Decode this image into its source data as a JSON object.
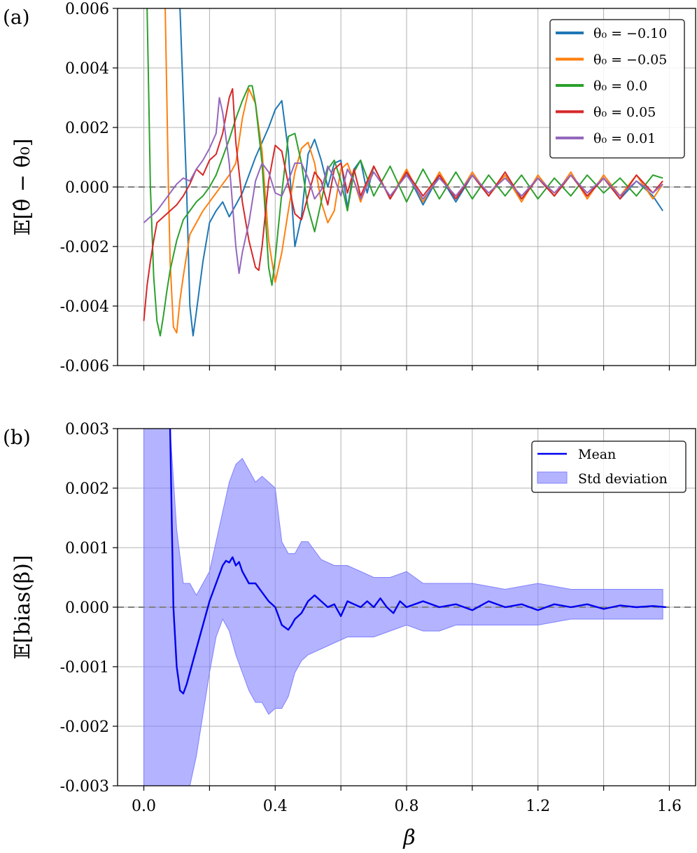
{
  "chart_data": [
    {
      "type": "line",
      "panel_label": "(a)",
      "ylabel": "𝔼[θ̂ − θ₀]",
      "xlim": [
        -0.08,
        1.68
      ],
      "ylim": [
        -0.006,
        0.006
      ],
      "yticks": [
        "-0.006",
        "-0.004",
        "-0.002",
        "0.000",
        "0.002",
        "0.004",
        "0.006"
      ],
      "ytick_values": [
        -0.006,
        -0.004,
        -0.002,
        0.0,
        0.002,
        0.004,
        0.006
      ],
      "xticks_grid": [
        0.0,
        0.2,
        0.4,
        0.6,
        0.8,
        1.0,
        1.2,
        1.4,
        1.6
      ],
      "grid": true,
      "reference_line": 0.0,
      "legend_position": "upper right",
      "series": [
        {
          "name": "θ₀ = −0.10",
          "color": "#1f77b4",
          "x": [
            0.11,
            0.12,
            0.13,
            0.14,
            0.15,
            0.16,
            0.18,
            0.2,
            0.22,
            0.24,
            0.26,
            0.28,
            0.3,
            0.32,
            0.34,
            0.36,
            0.38,
            0.4,
            0.42,
            0.44,
            0.46,
            0.48,
            0.5,
            0.52,
            0.54,
            0.56,
            0.58,
            0.6,
            0.62,
            0.64,
            0.66,
            0.68,
            0.7,
            0.75,
            0.8,
            0.85,
            0.9,
            0.95,
            1.0,
            1.05,
            1.1,
            1.15,
            1.2,
            1.25,
            1.3,
            1.35,
            1.4,
            1.45,
            1.5,
            1.55,
            1.58
          ],
          "values": [
            0.006,
            0.003,
            0.0,
            -0.004,
            -0.005,
            -0.0042,
            -0.0025,
            -0.0012,
            -0.0008,
            -0.0005,
            -0.001,
            -0.0006,
            -0.0002,
            0.0004,
            0.001,
            0.0015,
            0.002,
            0.0026,
            0.0029,
            0.0012,
            -0.002,
            -0.001,
            0.0011,
            0.0016,
            0.0009,
            0.0,
            0.0008,
            0.0009,
            -0.0007,
            0.0006,
            0.0009,
            -0.0002,
            0.0007,
            -0.0004,
            0.0005,
            -0.0006,
            0.0004,
            -0.0005,
            0.0004,
            -0.0003,
            0.0004,
            -0.0004,
            0.0003,
            -0.0003,
            0.0004,
            -0.0003,
            0.0003,
            -0.0004,
            0.0002,
            -0.0003,
            -0.0008
          ]
        },
        {
          "name": "θ₀ = −0.05",
          "color": "#ff7f0e",
          "x": [
            0.065,
            0.07,
            0.075,
            0.08,
            0.09,
            0.1,
            0.11,
            0.12,
            0.13,
            0.14,
            0.16,
            0.18,
            0.2,
            0.22,
            0.24,
            0.26,
            0.28,
            0.3,
            0.32,
            0.34,
            0.36,
            0.38,
            0.4,
            0.42,
            0.44,
            0.46,
            0.48,
            0.5,
            0.52,
            0.54,
            0.56,
            0.58,
            0.6,
            0.62,
            0.64,
            0.66,
            0.7,
            0.75,
            0.8,
            0.85,
            0.9,
            0.95,
            1.0,
            1.05,
            1.1,
            1.15,
            1.2,
            1.25,
            1.3,
            1.35,
            1.4,
            1.45,
            1.5,
            1.55,
            1.58
          ],
          "values": [
            0.006,
            0.003,
            0.0,
            -0.0025,
            -0.0047,
            -0.0049,
            -0.0038,
            -0.003,
            -0.0023,
            -0.0016,
            -0.0012,
            -0.0008,
            -0.0005,
            -0.0002,
            0.0001,
            0.0004,
            0.0008,
            0.0023,
            0.0033,
            0.0028,
            0.0012,
            -0.0018,
            -0.0032,
            -0.0022,
            -0.0008,
            0.0005,
            0.0013,
            0.0015,
            0.0008,
            -0.0005,
            -0.0012,
            -0.0008,
            0.0006,
            0.0008,
            0.0002,
            -0.0005,
            0.0007,
            -0.0004,
            0.0006,
            -0.0005,
            0.0005,
            -0.0004,
            0.0005,
            -0.0003,
            0.0004,
            -0.0005,
            0.0004,
            -0.0003,
            0.0005,
            -0.0004,
            0.0004,
            -0.0003,
            0.0004,
            -0.0004,
            0.0001
          ]
        },
        {
          "name": "θ₀ = 0.0",
          "color": "#2ca02c",
          "x": [
            0.01,
            0.015,
            0.02,
            0.03,
            0.04,
            0.05,
            0.06,
            0.07,
            0.08,
            0.1,
            0.12,
            0.14,
            0.16,
            0.18,
            0.2,
            0.22,
            0.24,
            0.26,
            0.28,
            0.3,
            0.32,
            0.33,
            0.34,
            0.36,
            0.38,
            0.39,
            0.4,
            0.42,
            0.44,
            0.46,
            0.48,
            0.5,
            0.52,
            0.54,
            0.56,
            0.58,
            0.6,
            0.62,
            0.64,
            0.66,
            0.7,
            0.75,
            0.8,
            0.85,
            0.9,
            0.95,
            1.0,
            1.05,
            1.1,
            1.15,
            1.2,
            1.25,
            1.3,
            1.35,
            1.4,
            1.45,
            1.5,
            1.55,
            1.58
          ],
          "values": [
            0.006,
            0.003,
            0.0,
            -0.003,
            -0.0045,
            -0.005,
            -0.0043,
            -0.0035,
            -0.0028,
            -0.0018,
            -0.0011,
            -0.0008,
            -0.0005,
            -0.0003,
            0.0,
            0.0004,
            0.001,
            0.0016,
            0.0023,
            0.0029,
            0.0034,
            0.0034,
            0.0028,
            0.0008,
            -0.0027,
            -0.0033,
            -0.0024,
            -0.0002,
            0.0017,
            0.0018,
            0.0008,
            -0.0007,
            -0.0015,
            -0.0005,
            0.0006,
            0.0009,
            0.0002,
            -0.0008,
            0.0005,
            0.0009,
            -0.0003,
            0.0007,
            -0.0005,
            0.0006,
            -0.0004,
            0.0005,
            -0.0004,
            0.0004,
            -0.0003,
            0.0004,
            -0.0004,
            0.0003,
            -0.0003,
            0.0004,
            -0.0002,
            0.0003,
            -0.0003,
            0.0004,
            0.0003
          ]
        },
        {
          "name": "θ₀ = 0.05",
          "color": "#d62728",
          "x": [
            0.0,
            0.01,
            0.02,
            0.03,
            0.04,
            0.06,
            0.08,
            0.1,
            0.12,
            0.14,
            0.16,
            0.18,
            0.2,
            0.22,
            0.24,
            0.26,
            0.27,
            0.28,
            0.3,
            0.32,
            0.34,
            0.35,
            0.36,
            0.38,
            0.4,
            0.42,
            0.44,
            0.46,
            0.48,
            0.5,
            0.52,
            0.54,
            0.56,
            0.58,
            0.6,
            0.62,
            0.64,
            0.66,
            0.7,
            0.75,
            0.8,
            0.85,
            0.9,
            0.95,
            1.0,
            1.05,
            1.1,
            1.15,
            1.2,
            1.25,
            1.3,
            1.35,
            1.4,
            1.45,
            1.5,
            1.55,
            1.58
          ],
          "values": [
            -0.0045,
            -0.0033,
            -0.0025,
            -0.0018,
            -0.0012,
            -0.001,
            -0.0008,
            -0.0006,
            -0.0003,
            0.0001,
            0.0006,
            0.0004,
            0.0009,
            0.0011,
            0.0018,
            0.003,
            0.0033,
            0.0015,
            -0.0005,
            -0.0018,
            -0.0027,
            -0.0028,
            -0.002,
            0.0002,
            0.0014,
            0.0012,
            0.0001,
            -0.0009,
            -0.0011,
            -0.0003,
            0.0005,
            0.0002,
            -0.0006,
            0.0006,
            0.0008,
            -0.0002,
            0.0006,
            -0.0003,
            0.0007,
            -0.0004,
            0.0005,
            -0.0003,
            0.0004,
            -0.0004,
            0.0004,
            -0.0003,
            0.0005,
            -0.0004,
            0.0003,
            -0.0003,
            0.0004,
            -0.0003,
            0.0003,
            -0.0004,
            0.0004,
            -0.0002,
            0.0002
          ]
        },
        {
          "name": "θ₀ = 0.01",
          "color": "#9467bd",
          "x": [
            0.0,
            0.02,
            0.04,
            0.06,
            0.08,
            0.1,
            0.12,
            0.14,
            0.16,
            0.18,
            0.2,
            0.22,
            0.23,
            0.24,
            0.26,
            0.28,
            0.29,
            0.3,
            0.32,
            0.34,
            0.36,
            0.38,
            0.4,
            0.42,
            0.44,
            0.46,
            0.48,
            0.5,
            0.52,
            0.54,
            0.56,
            0.58,
            0.6,
            0.62,
            0.64,
            0.66,
            0.7,
            0.75,
            0.8,
            0.85,
            0.9,
            0.95,
            1.0,
            1.05,
            1.1,
            1.15,
            1.2,
            1.25,
            1.3,
            1.35,
            1.4,
            1.45,
            1.5,
            1.55,
            1.58
          ],
          "values": [
            -0.0012,
            -0.001,
            -0.0008,
            -0.0005,
            -0.0002,
            0.0001,
            0.0003,
            0.0002,
            0.0006,
            0.0009,
            0.0013,
            0.0018,
            0.003,
            0.0025,
            0.0008,
            -0.002,
            -0.0029,
            -0.0022,
            -0.0012,
            0.0002,
            0.0008,
            0.0005,
            -0.0002,
            -0.0003,
            0.0002,
            0.0008,
            0.0008,
            0.0003,
            -0.0004,
            -0.0001,
            0.0007,
            0.0003,
            -0.0003,
            0.0006,
            0.0002,
            -0.0004,
            0.0005,
            -0.0003,
            0.0004,
            -0.0004,
            0.0003,
            -0.0003,
            0.0004,
            -0.0002,
            0.0003,
            -0.0003,
            0.0003,
            -0.0002,
            0.0004,
            -0.0002,
            0.0003,
            -0.0003,
            0.0002,
            -0.0002,
            0.0001
          ]
        }
      ]
    },
    {
      "type": "area",
      "panel_label": "(b)",
      "ylabel": "𝔼[bias(β)]",
      "xlabel": "β",
      "xlim": [
        -0.08,
        1.68
      ],
      "ylim": [
        -0.003,
        0.003
      ],
      "yticks": [
        "-0.003",
        "-0.002",
        "-0.001",
        "0.000",
        "0.001",
        "0.002",
        "0.003"
      ],
      "ytick_values": [
        -0.003,
        -0.002,
        -0.001,
        0.0,
        0.001,
        0.002,
        0.003
      ],
      "xticks": [
        "0.0",
        "0.4",
        "0.8",
        "1.2",
        "1.6"
      ],
      "xtick_values": [
        0.0,
        0.4,
        0.8,
        1.2,
        1.6
      ],
      "xticks_grid": [
        0.0,
        0.2,
        0.4,
        0.6,
        0.8,
        1.0,
        1.2,
        1.4,
        1.6
      ],
      "grid": true,
      "reference_line": 0.0,
      "legend_position": "upper right",
      "series": [
        {
          "name": "Mean",
          "color": "#0000ee",
          "x": [
            0.08,
            0.085,
            0.09,
            0.1,
            0.11,
            0.12,
            0.13,
            0.14,
            0.15,
            0.16,
            0.18,
            0.2,
            0.22,
            0.24,
            0.25,
            0.26,
            0.27,
            0.28,
            0.29,
            0.3,
            0.32,
            0.34,
            0.36,
            0.38,
            0.4,
            0.42,
            0.44,
            0.45,
            0.46,
            0.48,
            0.5,
            0.52,
            0.54,
            0.56,
            0.58,
            0.6,
            0.62,
            0.64,
            0.66,
            0.68,
            0.7,
            0.72,
            0.74,
            0.76,
            0.78,
            0.8,
            0.85,
            0.9,
            0.95,
            1.0,
            1.05,
            1.1,
            1.15,
            1.2,
            1.25,
            1.3,
            1.35,
            1.4,
            1.45,
            1.5,
            1.55,
            1.59
          ],
          "values": [
            0.003,
            0.0015,
            0.0,
            -0.001,
            -0.0014,
            -0.00145,
            -0.0013,
            -0.0011,
            -0.0009,
            -0.0007,
            -0.0003,
            0.0001,
            0.0004,
            0.0007,
            0.00078,
            0.00075,
            0.00084,
            0.0007,
            0.00076,
            0.0006,
            0.0004,
            0.0004,
            0.00025,
            0.0001,
            0.0,
            -0.0003,
            -0.00038,
            -0.0003,
            -0.0002,
            -0.0001,
            0.0001,
            0.0002,
            0.0001,
            0.0,
            5e-05,
            -0.00015,
            0.0001,
            5e-05,
            0.0,
            0.0001,
            0.0,
            0.00015,
            0.0,
            -0.0001,
            0.0001,
            0.0,
            0.0001,
            0.0,
            5e-05,
            -5e-05,
            0.0001,
            0.0,
            5e-05,
            -5e-05,
            5e-05,
            0.0,
            5e-05,
            -3e-05,
            3e-05,
            0.0,
            2e-05,
            0.0
          ]
        },
        {
          "name": "Std deviation",
          "color": "#8080ff",
          "fill_opacity": 0.6,
          "x": [
            0.0,
            0.04,
            0.06,
            0.08,
            0.1,
            0.12,
            0.14,
            0.16,
            0.18,
            0.2,
            0.22,
            0.24,
            0.26,
            0.28,
            0.3,
            0.32,
            0.34,
            0.36,
            0.38,
            0.4,
            0.42,
            0.44,
            0.46,
            0.48,
            0.5,
            0.54,
            0.58,
            0.62,
            0.66,
            0.7,
            0.75,
            0.8,
            0.85,
            0.9,
            0.95,
            1.0,
            1.1,
            1.2,
            1.3,
            1.4,
            1.5,
            1.58
          ],
          "upper": [
            0.003,
            0.003,
            0.003,
            0.003,
            0.0013,
            0.0004,
            0.0004,
            0.0002,
            0.0004,
            0.0006,
            0.0011,
            0.0016,
            0.0021,
            0.0024,
            0.0025,
            0.0023,
            0.0021,
            0.0022,
            0.0021,
            0.002,
            0.0011,
            0.0009,
            0.0009,
            0.0011,
            0.0011,
            0.0008,
            0.0007,
            0.0007,
            0.0006,
            0.0005,
            0.0005,
            0.0006,
            0.0004,
            0.0004,
            0.0004,
            0.0004,
            0.0003,
            0.0004,
            0.0003,
            0.0003,
            0.0003,
            0.0003
          ],
          "lower": [
            -0.003,
            -0.003,
            -0.003,
            -0.003,
            -0.003,
            -0.003,
            -0.003,
            -0.0025,
            -0.0018,
            -0.0011,
            -0.0005,
            -0.0002,
            -0.0004,
            -0.0008,
            -0.0011,
            -0.0014,
            -0.0016,
            -0.0016,
            -0.0018,
            -0.0017,
            -0.0017,
            -0.0015,
            -0.0011,
            -0.0009,
            -0.0008,
            -0.0007,
            -0.0006,
            -0.0005,
            -0.0005,
            -0.0005,
            -0.0004,
            -0.0003,
            -0.0004,
            -0.0004,
            -0.0003,
            -0.0003,
            -0.0003,
            -0.0003,
            -0.0002,
            -0.0002,
            -0.0002,
            -0.0002
          ]
        }
      ]
    }
  ]
}
